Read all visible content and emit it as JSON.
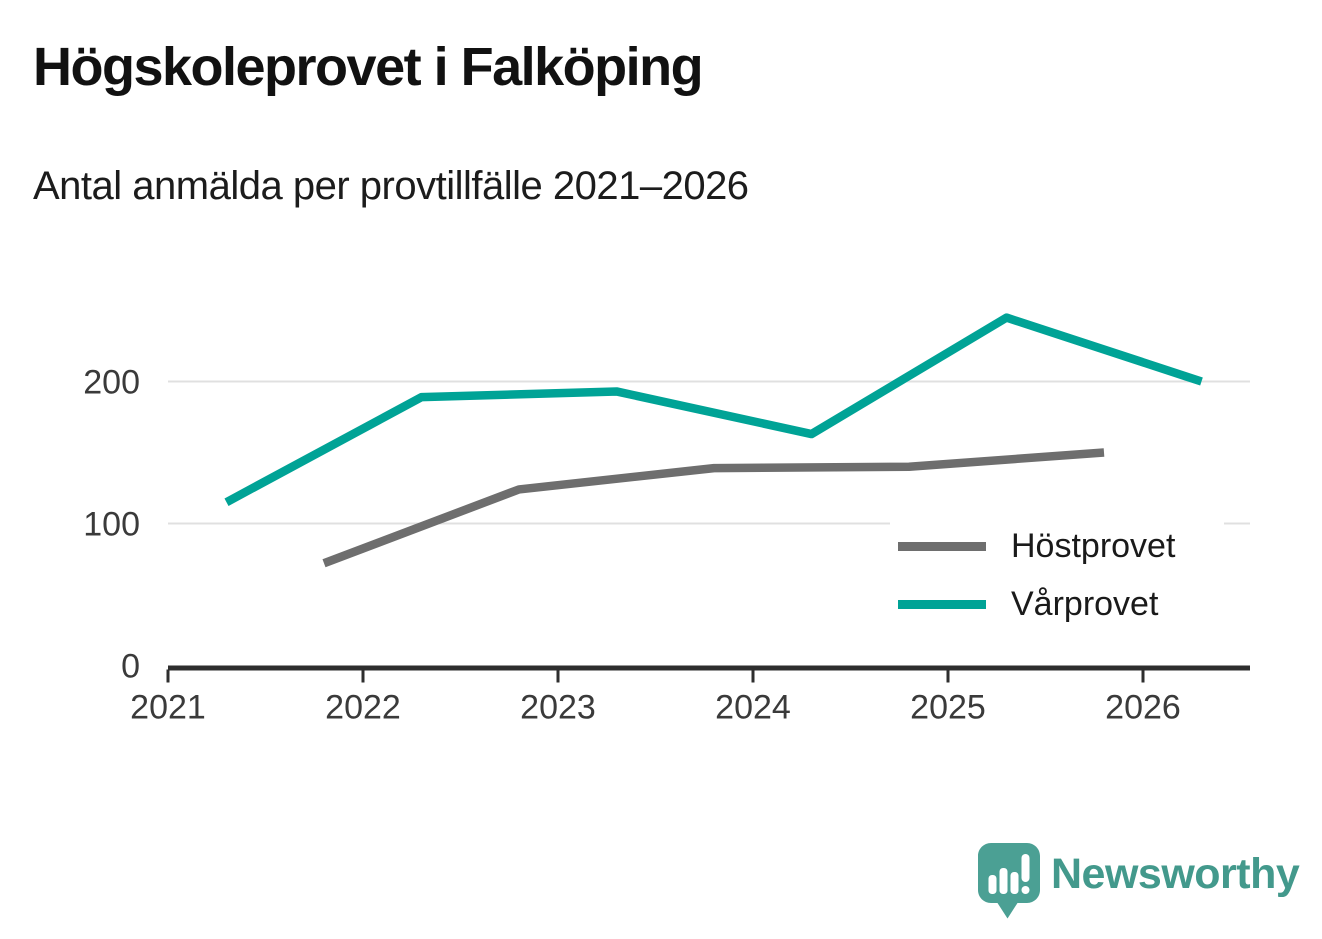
{
  "chart_data": {
    "type": "line",
    "title": "Högskoleprovet i Falköping",
    "subtitle": "Antal anmälda per provtillfälle 2021–2026",
    "xlabel": "",
    "ylabel": "",
    "xticks": [
      2021,
      2022,
      2023,
      2024,
      2025,
      2026
    ],
    "yticks": [
      0,
      100,
      200
    ],
    "xlim": [
      2020.99,
      2026.55
    ],
    "ylim": [
      0,
      292
    ],
    "grid": "horizontal",
    "legend_position": "inside-right",
    "colors": {
      "grid": "#e0e0e0",
      "axis": "#2e2e2e",
      "tick_text": "#3a3a3a"
    },
    "series": [
      {
        "name": "Höstprovet",
        "color": "#6e6e6e",
        "x": [
          2021.8,
          2022.8,
          2023.8,
          2024.8,
          2025.8
        ],
        "values": [
          72,
          124,
          139,
          140,
          150
        ]
      },
      {
        "name": "Vårprovet",
        "color": "#00a396",
        "x": [
          2021.3,
          2022.3,
          2023.3,
          2024.3,
          2025.3,
          2026.3
        ],
        "values": [
          115,
          189,
          193,
          163,
          245,
          200
        ]
      }
    ]
  },
  "footer": {
    "brand": "Newsworthy",
    "logo_icon": "speech-bubble-bar-chart-icon",
    "brand_color": "#43998c",
    "icon_color": "#4ba094"
  }
}
